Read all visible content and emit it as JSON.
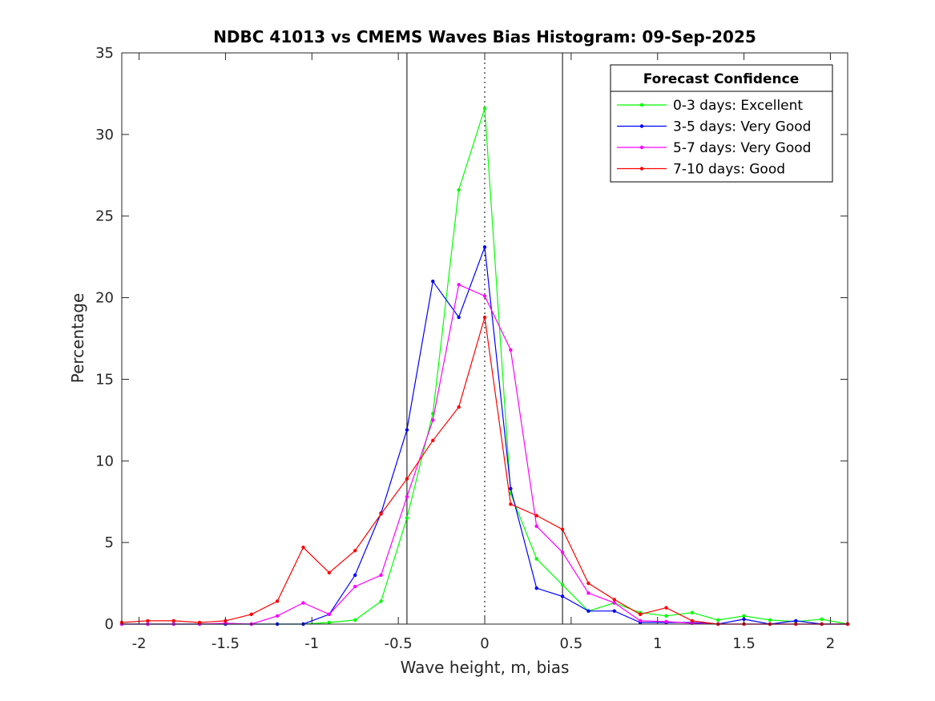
{
  "chart_data": {
    "type": "line",
    "title": "NDBC 41013 vs CMEMS Waves Bias Histogram: 09-Sep-2025",
    "xlabel": "Wave height, m, bias",
    "ylabel": "Percentage",
    "xlim": [
      -2.1,
      2.1
    ],
    "ylim": [
      0,
      35
    ],
    "xticks": [
      -2,
      -1.5,
      -1,
      -0.5,
      0,
      0.5,
      1,
      1.5,
      2
    ],
    "xtick_labels": [
      "-2",
      "-1.5",
      "-1",
      "-0.5",
      "0",
      "0.5",
      "1",
      "1.5",
      "2"
    ],
    "yticks": [
      0,
      5,
      10,
      15,
      20,
      25,
      30,
      35
    ],
    "ytick_labels": [
      "0",
      "5",
      "10",
      "15",
      "20",
      "25",
      "30",
      "35"
    ],
    "grid": false,
    "vertical_lines": [
      {
        "x": -0.45,
        "style": "solid"
      },
      {
        "x": 0,
        "style": "dotted"
      },
      {
        "x": 0.45,
        "style": "solid"
      }
    ],
    "legend": {
      "title": "Forecast Confidence",
      "placement": "top-right",
      "entries": [
        "0-3 days: Excellent",
        "3-5 days: Very Good",
        "5-7 days: Very Good",
        "7-10 days: Good"
      ]
    },
    "x": [
      -2.1,
      -1.95,
      -1.8,
      -1.65,
      -1.5,
      -1.35,
      -1.2,
      -1.05,
      -0.9,
      -0.75,
      -0.6,
      -0.45,
      -0.3,
      -0.15,
      0,
      0.15,
      0.3,
      0.45,
      0.6,
      0.75,
      0.9,
      1.05,
      1.2,
      1.35,
      1.5,
      1.65,
      1.8,
      1.95,
      2.1
    ],
    "series": [
      {
        "name": "0-3 days: Excellent",
        "color": "#00ff00",
        "values": [
          0,
          0,
          0,
          0,
          0,
          0,
          0,
          0,
          0.1,
          0.25,
          1.4,
          6.5,
          12.9,
          26.6,
          31.6,
          8.0,
          4.0,
          2.4,
          0.8,
          1.3,
          0.7,
          0.5,
          0.7,
          0.25,
          0.5,
          0.25,
          0.15,
          0.3,
          0
        ]
      },
      {
        "name": "3-5 days: Very Good",
        "color": "#0000ff",
        "values": [
          0,
          0,
          0,
          0,
          0,
          0,
          0,
          0,
          0.6,
          3.0,
          6.8,
          11.9,
          21.0,
          18.8,
          23.1,
          8.3,
          2.2,
          1.7,
          0.8,
          0.8,
          0.1,
          0.1,
          0.1,
          0,
          0.3,
          0,
          0.2,
          0,
          0
        ]
      },
      {
        "name": "5-7 days: Very Good",
        "color": "#ff00ff",
        "values": [
          0,
          0,
          0,
          0,
          0.05,
          0,
          0.5,
          1.3,
          0.6,
          2.3,
          3.0,
          7.8,
          12.5,
          20.8,
          20.1,
          16.8,
          6.0,
          4.4,
          1.9,
          1.3,
          0.2,
          0.15,
          0.05,
          0,
          0,
          0,
          0,
          0,
          0
        ]
      },
      {
        "name": "7-10 days: Good",
        "color": "#ff0000",
        "values": [
          0.1,
          0.2,
          0.2,
          0.1,
          0.2,
          0.6,
          1.4,
          4.7,
          3.15,
          4.5,
          6.75,
          8.9,
          11.25,
          13.3,
          18.8,
          7.35,
          6.65,
          5.8,
          2.5,
          1.5,
          0.6,
          1.0,
          0.2,
          0,
          0,
          0,
          0,
          0,
          0
        ]
      }
    ]
  }
}
